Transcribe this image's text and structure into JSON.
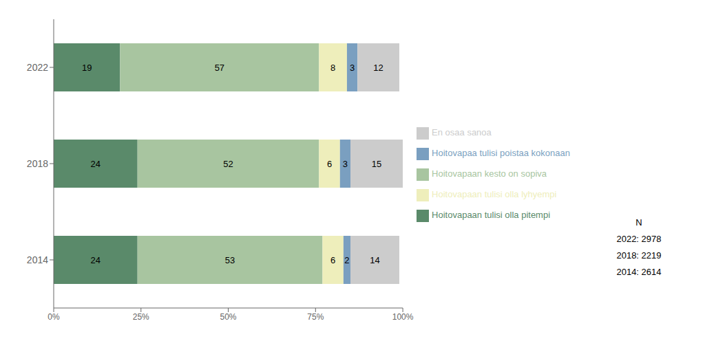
{
  "chart_data": {
    "type": "bar",
    "orientation": "horizontal",
    "stacked": true,
    "data_labels": true,
    "grid": false,
    "legend": "right",
    "categories": [
      "2022",
      "2018",
      "2014"
    ],
    "series": [
      {
        "name": "Hoitovapaan tulisi olla pitempi",
        "color": "#5a8a6a",
        "values": [
          19,
          24,
          24
        ]
      },
      {
        "name": "Hoitovapaan kesto on sopiva",
        "color": "#a8c5a0",
        "values": [
          57,
          52,
          53
        ]
      },
      {
        "name": "Hoitovapaan tulisi olla lyhyempi",
        "color": "#eeeebb",
        "values": [
          8,
          6,
          6
        ]
      },
      {
        "name": "Hoitovapaa tulisi poistaa kokonaan",
        "color": "#7a9fc0",
        "values": [
          3,
          3,
          2
        ]
      },
      {
        "name": "En osaa sanoa",
        "color": "#cccccc",
        "values": [
          12,
          15,
          14
        ]
      }
    ],
    "xlim": [
      0,
      100
    ],
    "xticks": [
      {
        "value": 0,
        "label": "0%"
      },
      {
        "value": 25,
        "label": "25%"
      },
      {
        "value": 50,
        "label": "50%"
      },
      {
        "value": 75,
        "label": "75%"
      },
      {
        "value": 100,
        "label": "100%"
      }
    ],
    "annotations": [
      "N",
      "2022: 2978",
      "2018: 2219",
      "2014: 2614"
    ]
  }
}
